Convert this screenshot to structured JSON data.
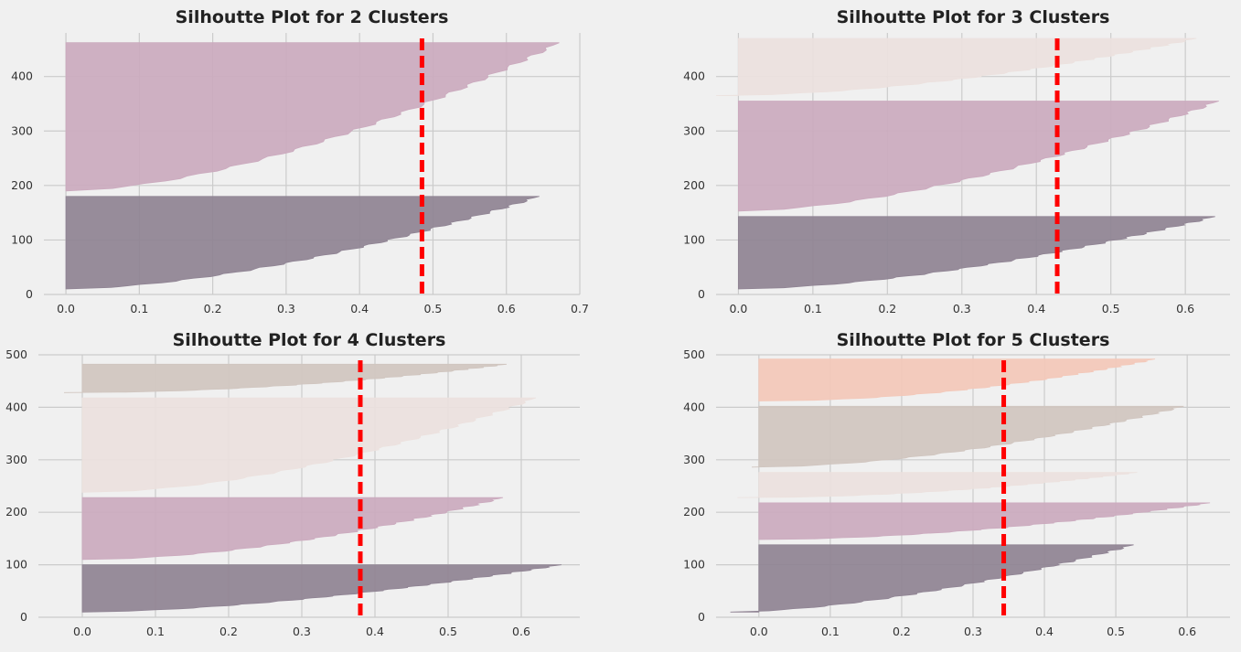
{
  "chart_data": [
    {
      "type": "area",
      "title": "Silhoutte Plot for 2 Clusters",
      "xlim": [
        -0.03,
        0.7
      ],
      "ylim": [
        0,
        480
      ],
      "xticks": [
        "0.0",
        "0.1",
        "0.2",
        "0.3",
        "0.4",
        "0.5",
        "0.6",
        "0.7"
      ],
      "yticks": [
        "0",
        "100",
        "200",
        "300",
        "400"
      ],
      "average_score": 0.485,
      "clusters": [
        {
          "color": "#8f8393",
          "y_start": 10,
          "y_end": 180,
          "min": 0.0,
          "max": 0.645,
          "curve": 0.6
        },
        {
          "color": "#cbaabe",
          "y_start": 190,
          "y_end": 462,
          "min": 0.0,
          "max": 0.672,
          "curve": 0.6
        }
      ]
    },
    {
      "type": "area",
      "title": "Silhoutte Plot for 3 Clusters",
      "xlim": [
        -0.03,
        0.66
      ],
      "ylim": [
        0,
        480
      ],
      "xticks": [
        "0.0",
        "0.1",
        "0.2",
        "0.3",
        "0.4",
        "0.5",
        "0.6"
      ],
      "yticks": [
        "0",
        "100",
        "200",
        "300",
        "400"
      ],
      "average_score": 0.428,
      "clusters": [
        {
          "color": "#8f8393",
          "y_start": 10,
          "y_end": 143,
          "min": 0.0,
          "max": 0.64,
          "curve": 0.6
        },
        {
          "color": "#cbaabe",
          "y_start": 153,
          "y_end": 355,
          "min": 0.0,
          "max": 0.645,
          "curve": 0.6
        },
        {
          "color": "#ece1de",
          "y_start": 365,
          "y_end": 470,
          "min": -0.03,
          "max": 0.615,
          "curve": 0.55
        }
      ]
    },
    {
      "type": "area",
      "title": "Silhoutte Plot for 4 Clusters",
      "xlim": [
        -0.06,
        0.68
      ],
      "ylim": [
        0,
        500
      ],
      "xticks": [
        "0.0",
        "0.1",
        "0.2",
        "0.3",
        "0.4",
        "0.5",
        "0.6"
      ],
      "yticks": [
        "0",
        "100",
        "200",
        "300",
        "400",
        "500"
      ],
      "average_score": 0.38,
      "clusters": [
        {
          "color": "#8f8393",
          "y_start": 10,
          "y_end": 100,
          "min": 0.0,
          "max": 0.655,
          "curve": 0.6
        },
        {
          "color": "#cbaabe",
          "y_start": 110,
          "y_end": 228,
          "min": 0.0,
          "max": 0.575,
          "curve": 0.55
        },
        {
          "color": "#ece1de",
          "y_start": 238,
          "y_end": 418,
          "min": 0.0,
          "max": 0.62,
          "curve": 0.55
        },
        {
          "color": "#d0c5bf",
          "y_start": 428,
          "y_end": 482,
          "min": -0.025,
          "max": 0.58,
          "curve": 0.5
        }
      ]
    },
    {
      "type": "area",
      "title": "Silhoutte Plot for 5 Clusters",
      "xlim": [
        -0.06,
        0.66
      ],
      "ylim": [
        0,
        500
      ],
      "xticks": [
        "0.0",
        "0.1",
        "0.2",
        "0.3",
        "0.4",
        "0.5",
        "0.6"
      ],
      "yticks": [
        "0",
        "100",
        "200",
        "300",
        "400",
        "500"
      ],
      "average_score": 0.343,
      "clusters": [
        {
          "color": "#8f8393",
          "y_start": 10,
          "y_end": 138,
          "min": -0.04,
          "max": 0.525,
          "curve": 0.6
        },
        {
          "color": "#cbaabe",
          "y_start": 148,
          "y_end": 218,
          "min": 0.0,
          "max": 0.632,
          "curve": 0.55
        },
        {
          "color": "#ece1de",
          "y_start": 228,
          "y_end": 276,
          "min": -0.03,
          "max": 0.53,
          "curve": 0.5
        },
        {
          "color": "#d0c5bf",
          "y_start": 286,
          "y_end": 402,
          "min": -0.01,
          "max": 0.595,
          "curve": 0.55
        },
        {
          "color": "#f3c8b9",
          "y_start": 412,
          "y_end": 492,
          "min": 0.0,
          "max": 0.555,
          "curve": 0.5
        }
      ]
    }
  ],
  "colors": {
    "background": "#f0f0f0",
    "grid": "#cbcbcb",
    "avg_line": "#ff0000"
  }
}
